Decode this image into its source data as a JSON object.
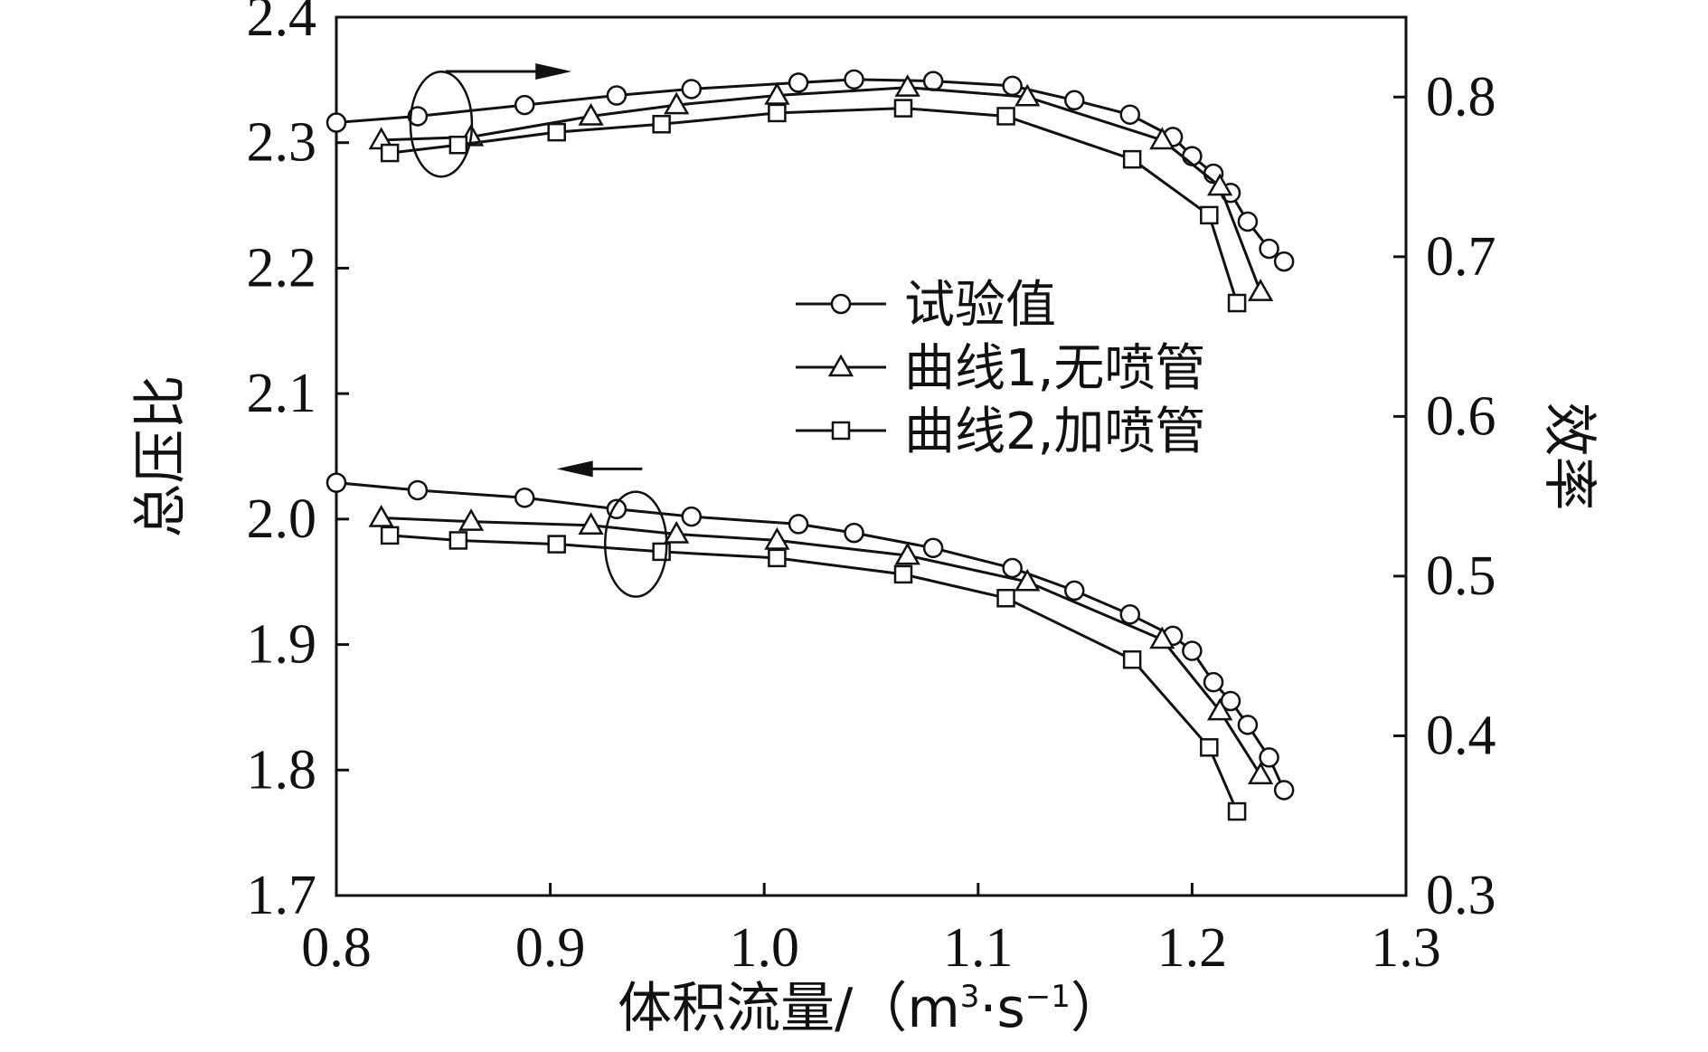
{
  "chart_data": {
    "type": "line",
    "x_axis": {
      "label_main": "体积流量/（m",
      "label_sup1": "3",
      "label_mid": "·s",
      "label_sup2": "−1",
      "label_end": "）",
      "range": [
        0.8,
        1.3
      ],
      "ticks": [
        "0.8",
        "0.9",
        "1.0",
        "1.1",
        "1.2",
        "1.3"
      ]
    },
    "y_left": {
      "label": "总压比",
      "range": [
        1.7,
        2.4
      ],
      "ticks": [
        "1.7",
        "1.8",
        "1.9",
        "2.0",
        "2.1",
        "2.2",
        "2.3",
        "2.4"
      ]
    },
    "y_right": {
      "label": "效率",
      "range": [
        0.3,
        0.85
      ],
      "ticks": [
        "0.3",
        "0.4",
        "0.5",
        "0.6",
        "0.7",
        "0.8"
      ]
    },
    "legend": {
      "position": "center-right",
      "entries": [
        {
          "label": "试验值",
          "marker": "circle"
        },
        {
          "label": "曲线1,无喷管",
          "marker": "triangle"
        },
        {
          "label": "曲线2,加喷管",
          "marker": "square"
        }
      ]
    },
    "series": [
      {
        "label": "试验值",
        "marker": "circle",
        "axis": "right",
        "x": [
          0.8,
          0.838,
          0.888,
          0.931,
          0.966,
          1.016,
          1.042,
          1.079,
          1.116,
          1.145,
          1.171,
          1.191,
          1.2,
          1.21,
          1.218,
          1.226,
          1.236,
          1.243
        ],
        "y": [
          0.784,
          0.788,
          0.795,
          0.801,
          0.805,
          0.809,
          0.811,
          0.81,
          0.807,
          0.798,
          0.789,
          0.775,
          0.763,
          0.752,
          0.74,
          0.722,
          0.705,
          0.697
        ]
      },
      {
        "label": "曲线1,无喷管",
        "marker": "triangle",
        "axis": "right",
        "x": [
          0.821,
          0.863,
          0.919,
          0.959,
          1.006,
          1.067,
          1.123,
          1.186,
          1.213,
          1.232
        ],
        "y": [
          0.773,
          0.775,
          0.788,
          0.795,
          0.801,
          0.806,
          0.8,
          0.773,
          0.744,
          0.678
        ]
      },
      {
        "label": "曲线2,加喷管",
        "marker": "square",
        "axis": "right",
        "x": [
          0.825,
          0.857,
          0.903,
          0.952,
          1.006,
          1.065,
          1.113,
          1.172,
          1.208,
          1.221
        ],
        "y": [
          0.765,
          0.77,
          0.778,
          0.783,
          0.79,
          0.793,
          0.788,
          0.761,
          0.726,
          0.671
        ]
      },
      {
        "label": "试验值",
        "marker": "circle",
        "axis": "left",
        "x": [
          0.8,
          0.838,
          0.888,
          0.931,
          0.966,
          1.016,
          1.042,
          1.079,
          1.116,
          1.145,
          1.171,
          1.191,
          1.2,
          1.21,
          1.218,
          1.226,
          1.236,
          1.243
        ],
        "y": [
          2.029,
          2.023,
          2.017,
          2.008,
          2.002,
          1.996,
          1.989,
          1.977,
          1.961,
          1.943,
          1.924,
          1.907,
          1.895,
          1.87,
          1.855,
          1.836,
          1.81,
          1.784
        ]
      },
      {
        "label": "曲线1,无喷管",
        "marker": "triangle",
        "axis": "left",
        "x": [
          0.821,
          0.863,
          0.919,
          0.959,
          1.006,
          1.067,
          1.123,
          1.186,
          1.213,
          1.232
        ],
        "y": [
          2.001,
          1.998,
          1.995,
          1.988,
          1.983,
          1.971,
          1.95,
          1.904,
          1.847,
          1.796
        ]
      },
      {
        "label": "曲线2,加喷管",
        "marker": "square",
        "axis": "left",
        "x": [
          0.825,
          0.857,
          0.903,
          0.952,
          1.006,
          1.065,
          1.113,
          1.172,
          1.208,
          1.221
        ],
        "y": [
          1.987,
          1.983,
          1.98,
          1.974,
          1.969,
          1.956,
          1.937,
          1.888,
          1.818,
          1.767
        ]
      }
    ],
    "annotations": [
      {
        "type": "ellipse",
        "near_axis": "right",
        "center": [
          0.849,
          0.783
        ]
      },
      {
        "type": "arrow",
        "direction": "right",
        "from": [
          0.851,
          0.816
        ],
        "to": [
          0.91,
          0.816
        ],
        "axis": "right"
      },
      {
        "type": "ellipse",
        "near_axis": "left",
        "center": [
          0.94,
          1.98
        ]
      },
      {
        "type": "arrow",
        "direction": "left",
        "from": [
          0.943,
          2.04
        ],
        "to": [
          0.903,
          2.04
        ],
        "axis": "left"
      }
    ]
  }
}
